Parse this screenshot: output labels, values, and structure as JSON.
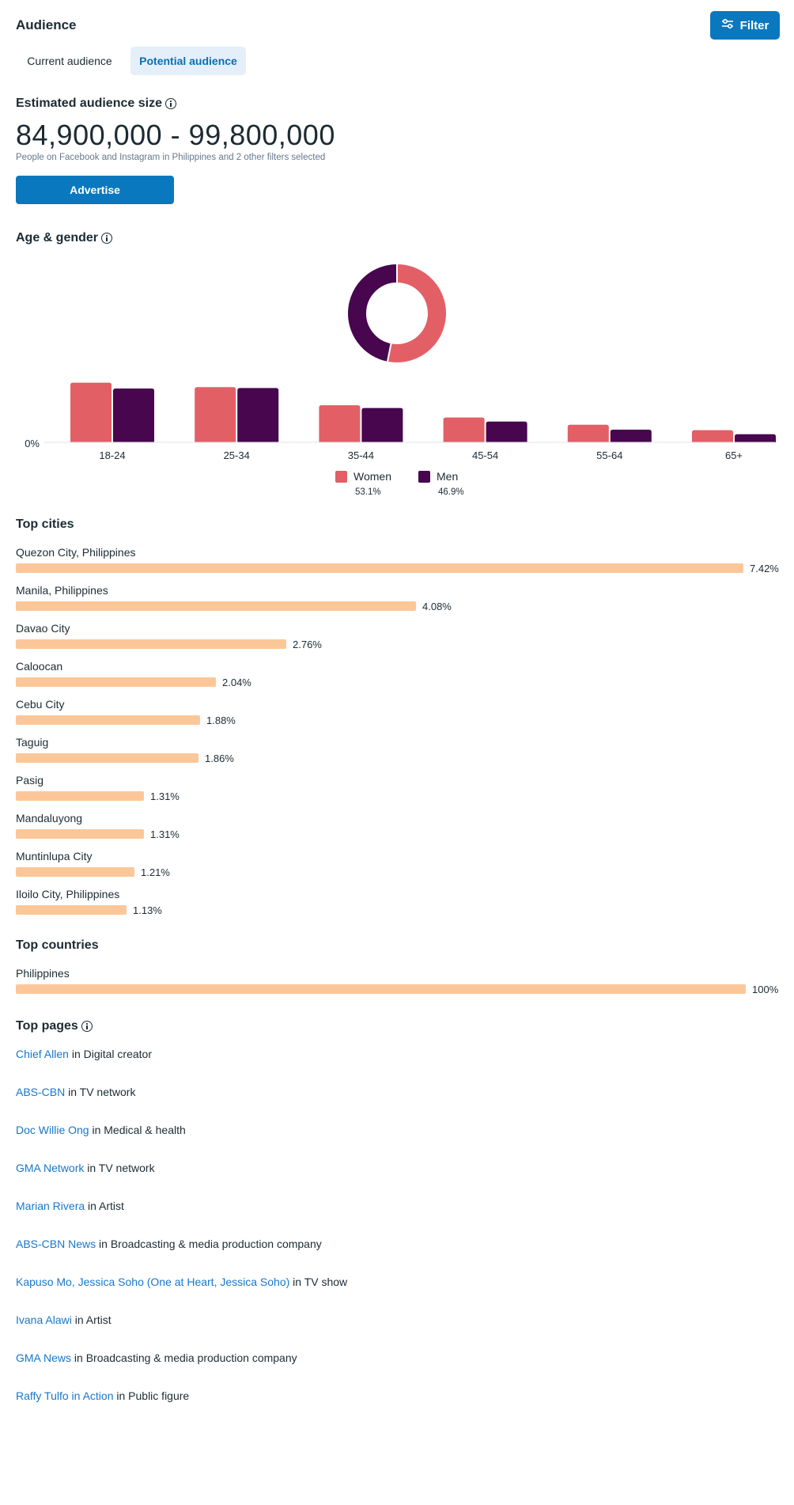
{
  "header": {
    "title": "Audience",
    "filter_label": "Filter"
  },
  "tabs": [
    {
      "label": "Current audience",
      "active": false
    },
    {
      "label": "Potential audience",
      "active": true
    }
  ],
  "audience_size": {
    "title": "Estimated audience size",
    "range": "84,900,000 - 99,800,000",
    "subtitle": "People on Facebook and Instagram in Philippines and 2 other filters selected",
    "advertise_label": "Advertise"
  },
  "age_gender": {
    "title": "Age & gender"
  },
  "chart_data": [
    {
      "type": "pie",
      "title": "",
      "labels": [
        "Women",
        "Men"
      ],
      "values": [
        53.1,
        46.9
      ],
      "colors": [
        "#e35f66",
        "#47064e"
      ]
    },
    {
      "type": "bar",
      "categories": [
        "18-24",
        "25-34",
        "35-44",
        "45-54",
        "55-64",
        "65+"
      ],
      "series": [
        {
          "name": "Women",
          "values": [
            13.2,
            12.2,
            8.2,
            5.5,
            3.9,
            2.7
          ],
          "color": "#e35f66"
        },
        {
          "name": "Men",
          "values": [
            11.9,
            12.0,
            7.6,
            4.6,
            2.8,
            1.8
          ],
          "color": "#47064e"
        }
      ],
      "ylim": [
        0,
        14
      ],
      "y_tick_label": "0%",
      "legend": [
        {
          "label": "Women",
          "pct": "53.1%"
        },
        {
          "label": "Men",
          "pct": "46.9%"
        }
      ]
    },
    {
      "type": "bar",
      "title": "Top cities",
      "categories": [
        "Quezon City, Philippines",
        "Manila, Philippines",
        "Davao City",
        "Caloocan",
        "Cebu City",
        "Taguig",
        "Pasig",
        "Mandaluyong",
        "Muntinlupa City",
        "Iloilo City, Philippines"
      ],
      "values": [
        7.42,
        4.08,
        2.76,
        2.04,
        1.88,
        1.86,
        1.31,
        1.31,
        1.21,
        1.13
      ],
      "value_labels": [
        "7.42%",
        "4.08%",
        "2.76%",
        "2.04%",
        "1.88%",
        "1.86%",
        "1.31%",
        "1.31%",
        "1.21%",
        "1.13%"
      ],
      "color": "#fcc798"
    },
    {
      "type": "bar",
      "title": "Top countries",
      "categories": [
        "Philippines"
      ],
      "values": [
        100
      ],
      "value_labels": [
        "100%"
      ],
      "color": "#fcc798"
    }
  ],
  "top_pages": {
    "title": "Top pages",
    "items": [
      {
        "name": "Chief Allen",
        "category": " in Digital creator"
      },
      {
        "name": "ABS-CBN",
        "category": " in TV network"
      },
      {
        "name": "Doc Willie Ong",
        "category": " in Medical & health"
      },
      {
        "name": "GMA Network",
        "category": " in TV network"
      },
      {
        "name": "Marian Rivera",
        "category": " in Artist"
      },
      {
        "name": "ABS-CBN News",
        "category": " in Broadcasting & media production company"
      },
      {
        "name": "Kapuso Mo, Jessica Soho (One at Heart, Jessica Soho)",
        "category": " in TV show"
      },
      {
        "name": "Ivana Alawi",
        "category": " in Artist"
      },
      {
        "name": "GMA News",
        "category": " in Broadcasting & media production company"
      },
      {
        "name": "Raffy Tulfo in Action",
        "category": " in Public figure"
      }
    ]
  },
  "colors": {
    "primary": "#0a78be",
    "women": "#e35f66",
    "men": "#47064e",
    "city_bar": "#fcc798",
    "link": "#1877c9"
  }
}
